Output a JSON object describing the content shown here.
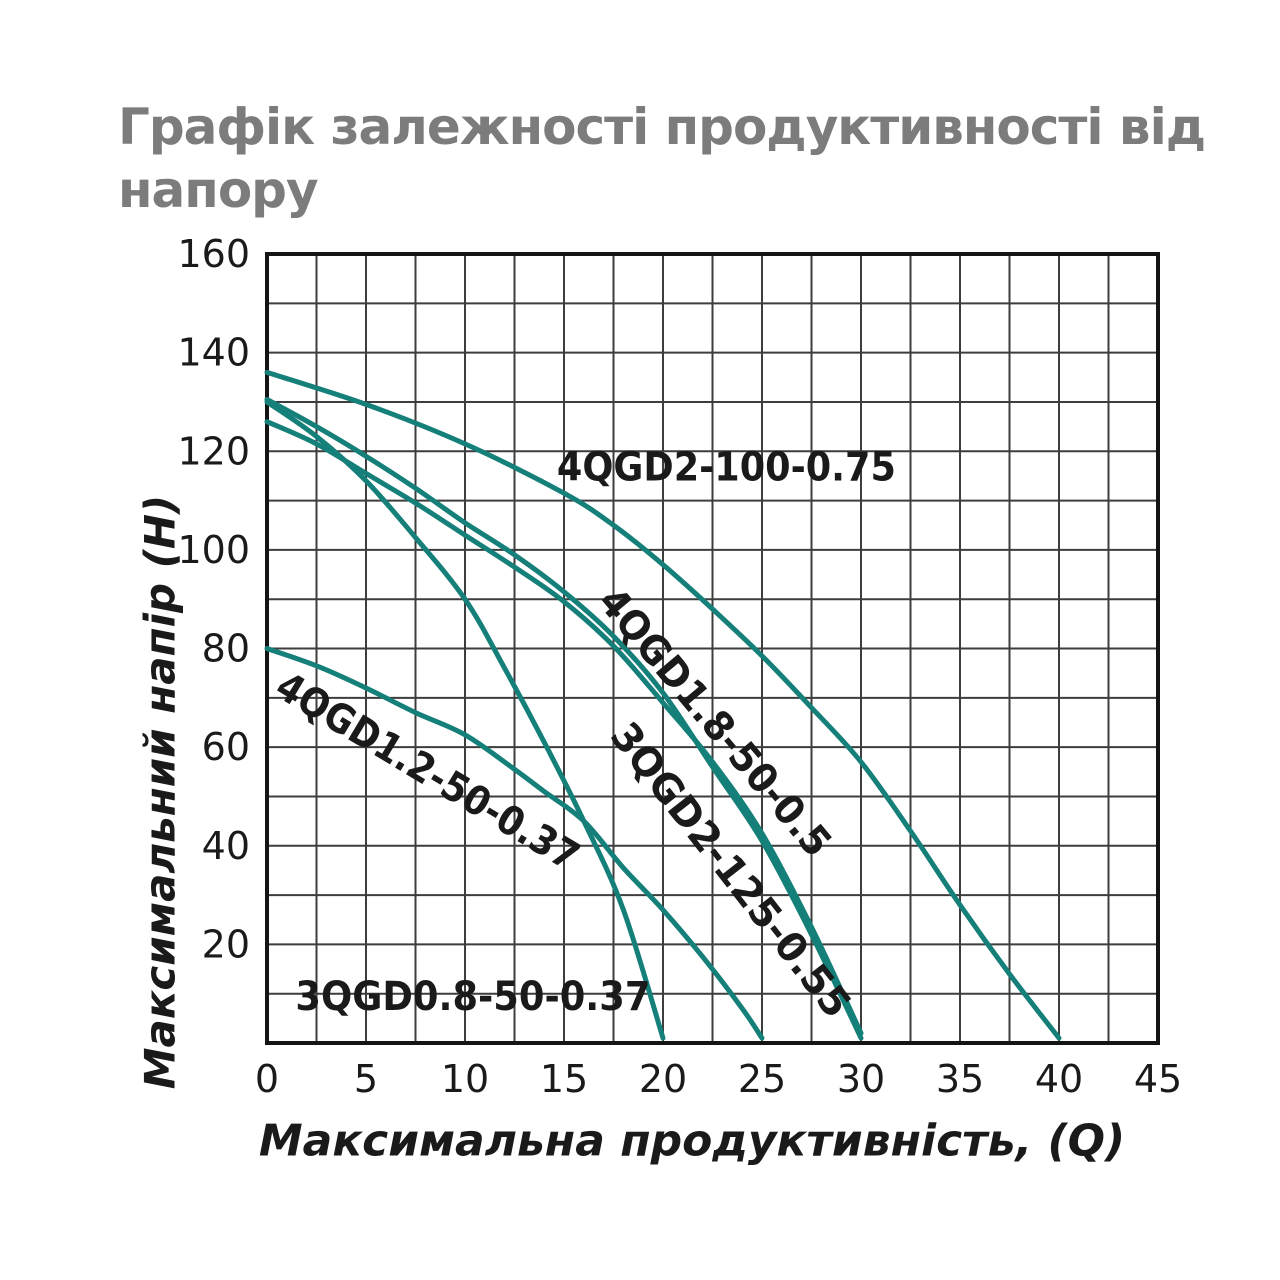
{
  "header": {
    "title_lines": [
      "Графік залежності продуктивності від",
      "напору"
    ]
  },
  "colors": {
    "curve": "#157f79",
    "grid": "#3d3d3d",
    "axis": "#141414",
    "title_gray": "#7c7c7c",
    "text": "#1a1a1a"
  },
  "chart_data": {
    "type": "line",
    "title": "Графік залежності продуктивності від напору",
    "xlabel": "Максимальна продуктивність, (Q)",
    "ylabel": "Максимальний напір (Н)",
    "xlim": [
      0,
      45
    ],
    "ylim": [
      0,
      160
    ],
    "x_ticks": [
      0,
      5,
      10,
      15,
      20,
      25,
      30,
      35,
      40,
      45
    ],
    "y_ticks": [
      20,
      40,
      60,
      80,
      100,
      120,
      140,
      160
    ],
    "x_minor_step": 2.5,
    "y_minor_step": 10,
    "grid": true,
    "legend_position": "labels-on-plot",
    "series": [
      {
        "name": "4QGD2-100-0.75",
        "points": [
          [
            0,
            136
          ],
          [
            5,
            129.5
          ],
          [
            10,
            121.5
          ],
          [
            15,
            111.5
          ],
          [
            17.5,
            105
          ],
          [
            20,
            97
          ],
          [
            22.5,
            88
          ],
          [
            25,
            78.5
          ],
          [
            27.5,
            68
          ],
          [
            30,
            57
          ],
          [
            32.5,
            43
          ],
          [
            35,
            28
          ],
          [
            37.5,
            14
          ],
          [
            40,
            1
          ]
        ],
        "label": {
          "q": 23.2,
          "h": 116.7,
          "angle": 0,
          "length": 339
        }
      },
      {
        "name": "4QGD1.8-50-0.5",
        "points": [
          [
            0,
            130.5
          ],
          [
            2.5,
            125
          ],
          [
            5,
            119
          ],
          [
            7.5,
            112.5
          ],
          [
            10,
            105.5
          ],
          [
            12.5,
            99
          ],
          [
            15,
            91.5
          ],
          [
            17.5,
            82.5
          ],
          [
            20,
            71
          ],
          [
            22.5,
            56
          ],
          [
            25,
            41
          ],
          [
            27.5,
            22
          ],
          [
            30,
            1
          ]
        ],
        "label": {
          "q": 22.6,
          "h": 65,
          "angle": 50,
          "length": 336
        }
      },
      {
        "name": "3QGD2-125-0.55",
        "points": [
          [
            0,
            126
          ],
          [
            2.5,
            121.5
          ],
          [
            5,
            115.5
          ],
          [
            7.5,
            109.5
          ],
          [
            10,
            103
          ],
          [
            12.5,
            96.5
          ],
          [
            15,
            89.5
          ],
          [
            17.5,
            80.5
          ],
          [
            20,
            69
          ],
          [
            22.5,
            57
          ],
          [
            25,
            42.5
          ],
          [
            27.5,
            23.5
          ],
          [
            30,
            2
          ]
        ],
        "label": {
          "q": 23.4,
          "h": 35,
          "angle": 52,
          "length": 361
        }
      },
      {
        "name": "3QGD0.8-50-0.37",
        "points": [
          [
            0,
            130
          ],
          [
            2.5,
            123
          ],
          [
            5,
            114
          ],
          [
            7.5,
            102.5
          ],
          [
            10,
            90
          ],
          [
            12,
            76
          ],
          [
            14,
            61
          ],
          [
            16,
            45
          ],
          [
            18,
            27
          ],
          [
            20,
            1
          ]
        ],
        "label": {
          "q": 10.4,
          "h": 9.3,
          "angle": 0,
          "length": 355
        }
      },
      {
        "name": "4QGD1.2-50-0.37",
        "points": [
          [
            0,
            80
          ],
          [
            2.5,
            76.5
          ],
          [
            5,
            72
          ],
          [
            7.5,
            67
          ],
          [
            10,
            62.5
          ],
          [
            12.5,
            55.5
          ],
          [
            14,
            51
          ],
          [
            16,
            45
          ],
          [
            18,
            35.5
          ],
          [
            20,
            27
          ],
          [
            22,
            17.5
          ],
          [
            24,
            7
          ],
          [
            25,
            1
          ]
        ],
        "label": {
          "q": 8.1,
          "h": 55,
          "angle": 31,
          "length": 345
        }
      }
    ]
  }
}
